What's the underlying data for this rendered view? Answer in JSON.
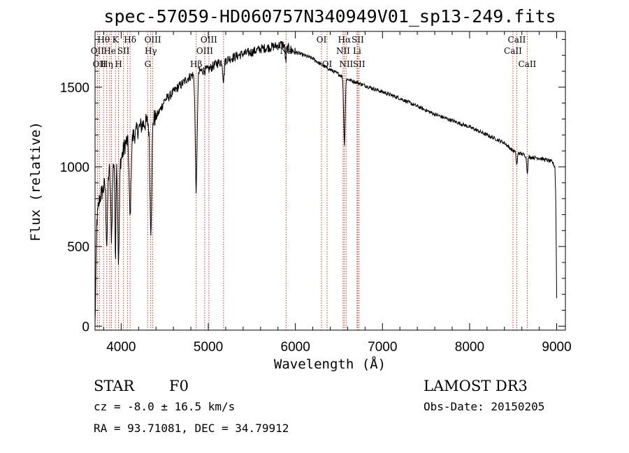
{
  "chart_data": {
    "type": "line",
    "title": "spec-57059-HD060757N340949V01_sp13-249.fits",
    "xlabel": "Wavelength (Å)",
    "ylabel": "Flux (relative)",
    "xlim": [
      3700,
      9100
    ],
    "ylim": [
      -25,
      1850
    ],
    "xticks": [
      4000,
      5000,
      6000,
      7000,
      8000,
      9000
    ],
    "yticks": [
      0,
      500,
      1000,
      1500
    ],
    "xtick_labels": [
      "4000",
      "5000",
      "6000",
      "7000",
      "8000",
      "9000"
    ],
    "ytick_labels": [
      "0",
      "500",
      "1000",
      "1500"
    ],
    "continuum": {
      "name": "flux",
      "x": [
        3700,
        3720,
        3750,
        3800,
        3850,
        3900,
        3950,
        4000,
        4050,
        4100,
        4150,
        4200,
        4250,
        4300,
        4350,
        4400,
        4450,
        4500,
        4550,
        4600,
        4650,
        4700,
        4750,
        4800,
        4900,
        5000,
        5100,
        5200,
        5300,
        5400,
        5500,
        5600,
        5700,
        5800,
        5850,
        5900,
        6000,
        6100,
        6200,
        6300,
        6400,
        6500,
        6600,
        6700,
        6800,
        7000,
        7200,
        7400,
        7600,
        7800,
        8000,
        8200,
        8400,
        8500,
        8600,
        8700,
        8800,
        8900,
        8950,
        8980,
        8990,
        9000
      ],
      "y": [
        5,
        650,
        800,
        870,
        960,
        1030,
        1050,
        1050,
        1150,
        1180,
        1200,
        1240,
        1270,
        1280,
        1300,
        1310,
        1360,
        1420,
        1440,
        1470,
        1500,
        1520,
        1550,
        1570,
        1600,
        1610,
        1650,
        1670,
        1690,
        1710,
        1720,
        1740,
        1750,
        1760,
        1770,
        1750,
        1720,
        1700,
        1680,
        1640,
        1610,
        1580,
        1550,
        1530,
        1510,
        1470,
        1430,
        1380,
        1330,
        1290,
        1250,
        1200,
        1150,
        1100,
        1080,
        1060,
        1055,
        1040,
        1030,
        1000,
        800,
        180
      ]
    },
    "absorption_lines": [
      {
        "center": 3835,
        "width": 12,
        "depth": 420
      },
      {
        "center": 3889,
        "width": 12,
        "depth": 450
      },
      {
        "center": 3934,
        "width": 8,
        "depth": 600
      },
      {
        "center": 3970,
        "width": 12,
        "depth": 650
      },
      {
        "center": 4102,
        "width": 15,
        "depth": 500
      },
      {
        "center": 4340,
        "width": 15,
        "depth": 680
      },
      {
        "center": 4861,
        "width": 15,
        "depth": 730
      },
      {
        "center": 5175,
        "width": 12,
        "depth": 120
      },
      {
        "center": 5890,
        "width": 10,
        "depth": 90
      },
      {
        "center": 6563,
        "width": 12,
        "depth": 420
      },
      {
        "center": 8542,
        "width": 10,
        "depth": 80
      },
      {
        "center": 8662,
        "width": 10,
        "depth": 100
      }
    ],
    "line_markers": [
      {
        "wavelength": 3727,
        "label": "OII",
        "row": 2
      },
      {
        "wavelength": 3750,
        "label": "OII",
        "row": 3
      },
      {
        "wavelength": 3798,
        "label": "Hθ",
        "row": 1
      },
      {
        "wavelength": 3835,
        "label": "Hη",
        "row": 3
      },
      {
        "wavelength": 3869,
        "label": "He",
        "row": 2
      },
      {
        "wavelength": 3889,
        "label": "",
        "row": 0
      },
      {
        "wavelength": 3934,
        "label": "K",
        "row": 1
      },
      {
        "wavelength": 3970,
        "label": "H",
        "row": 3
      },
      {
        "wavelength": 3970,
        "label": "",
        "row": 0
      },
      {
        "wavelength": 4026,
        "label": "SII",
        "row": 2
      },
      {
        "wavelength": 4072,
        "label": "",
        "row": 0
      },
      {
        "wavelength": 4102,
        "label": "Hδ",
        "row": 1
      },
      {
        "wavelength": 4305,
        "label": "G",
        "row": 3
      },
      {
        "wavelength": 4340,
        "label": "Hγ",
        "row": 2
      },
      {
        "wavelength": 4363,
        "label": "OIII",
        "row": 1
      },
      {
        "wavelength": 4861,
        "label": "Hβ",
        "row": 3
      },
      {
        "wavelength": 4959,
        "label": "OIII",
        "row": 2
      },
      {
        "wavelength": 5007,
        "label": "OIII",
        "row": 1
      },
      {
        "wavelength": 5175,
        "label": "",
        "row": 0
      },
      {
        "wavelength": 5893,
        "label": "Na",
        "row": 2
      },
      {
        "wavelength": 6300,
        "label": "OI",
        "row": 1
      },
      {
        "wavelength": 6364,
        "label": "OI",
        "row": 3
      },
      {
        "wavelength": 6548,
        "label": "NII",
        "row": 2
      },
      {
        "wavelength": 6563,
        "label": "Hα",
        "row": 1
      },
      {
        "wavelength": 6583,
        "label": "NII",
        "row": 3
      },
      {
        "wavelength": 6708,
        "label": "Li",
        "row": 2
      },
      {
        "wavelength": 6716,
        "label": "SII",
        "row": 1
      },
      {
        "wavelength": 6731,
        "label": "SII",
        "row": 3
      },
      {
        "wavelength": 8498,
        "label": "CaII",
        "row": 2
      },
      {
        "wavelength": 8542,
        "label": "CaII",
        "row": 1
      },
      {
        "wavelength": 8662,
        "label": "CaII",
        "row": 3
      }
    ]
  },
  "info": {
    "object_class": "STAR",
    "subclass": "F0",
    "survey": "LAMOST DR3",
    "redshift_text": "cz = -8.0 ± 16.5 km/s",
    "obs_date_text": "Obs-Date: 20150205",
    "coords_text": "RA =  93.71081, DEC =  34.79912"
  }
}
